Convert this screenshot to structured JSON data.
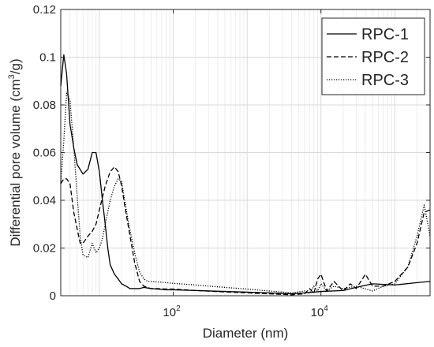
{
  "chart_data": {
    "type": "line",
    "title": "",
    "xlabel": "Diameter (nm)",
    "ylabel_main": "Differential pore volume (cm",
    "ylabel_sup": "3",
    "ylabel_tail": "/g)",
    "x_scale": "log",
    "xlim": [
      3,
      300000
    ],
    "ylim": [
      0,
      0.12
    ],
    "grid": true,
    "legend_position": "top-right",
    "y_ticks": [
      {
        "value": 0,
        "label": "0"
      },
      {
        "value": 0.02,
        "label": "0.02"
      },
      {
        "value": 0.04,
        "label": "0.04"
      },
      {
        "value": 0.06,
        "label": "0.06"
      },
      {
        "value": 0.08,
        "label": "0.08"
      },
      {
        "value": 0.1,
        "label": "0.1"
      },
      {
        "value": 0.12,
        "label": "0.12"
      }
    ],
    "x_ticks": [
      {
        "value": 100,
        "base": "10",
        "exp": "2"
      },
      {
        "value": 10000,
        "base": "10",
        "exp": "4"
      }
    ],
    "series": [
      {
        "name": "RPC-1",
        "dash": "solid",
        "x": [
          3,
          3.3,
          3.6,
          4,
          4.5,
          5,
          6,
          7,
          8,
          9,
          10,
          11,
          12,
          13,
          14,
          16,
          18,
          20,
          23,
          26,
          30,
          35,
          40,
          50,
          60,
          80,
          100,
          200,
          500,
          1000,
          2000,
          4000,
          6000,
          8000,
          10000,
          20000,
          30000,
          50000,
          100000,
          200000,
          300000
        ],
        "y": [
          0.088,
          0.101,
          0.093,
          0.072,
          0.062,
          0.055,
          0.051,
          0.053,
          0.06,
          0.06,
          0.052,
          0.04,
          0.03,
          0.02,
          0.013,
          0.009,
          0.007,
          0.005,
          0.004,
          0.003,
          0.003,
          0.003,
          0.0035,
          0.003,
          0.0028,
          0.0025,
          0.0025,
          0.0022,
          0.0018,
          0.0015,
          0.0012,
          0.0008,
          0.0012,
          0.0015,
          0.0018,
          0.0022,
          0.0035,
          0.005,
          0.0045,
          0.0055,
          0.006
        ]
      },
      {
        "name": "RPC-2",
        "dash": "dashed",
        "x": [
          3,
          3.3,
          3.6,
          4,
          4.5,
          5,
          5.5,
          6,
          7,
          8,
          9,
          10,
          12,
          14,
          16,
          18,
          20,
          22,
          25,
          30,
          35,
          40,
          45,
          50,
          60,
          80,
          100,
          200,
          500,
          1000,
          2000,
          4000,
          6000,
          7000,
          8000,
          9000,
          10000,
          12000,
          15000,
          20000,
          25000,
          30000,
          40000,
          50000,
          70000,
          100000,
          150000,
          200000,
          250000,
          300000
        ],
        "y": [
          0.047,
          0.049,
          0.049,
          0.047,
          0.035,
          0.028,
          0.022,
          0.022,
          0.025,
          0.027,
          0.03,
          0.036,
          0.046,
          0.052,
          0.054,
          0.052,
          0.046,
          0.038,
          0.028,
          0.014,
          0.006,
          0.004,
          0.0035,
          0.003,
          0.003,
          0.0028,
          0.0028,
          0.0022,
          0.0016,
          0.0012,
          0.0008,
          0.0004,
          0.0008,
          0.003,
          0.001,
          0.007,
          0.009,
          0.002,
          0.006,
          0.002,
          0.005,
          0.003,
          0.009,
          0.004,
          0.004,
          0.006,
          0.012,
          0.022,
          0.035,
          0.036
        ]
      },
      {
        "name": "RPC-3",
        "dash": "dotted",
        "x": [
          3,
          3.3,
          3.6,
          4,
          4.5,
          5,
          5.5,
          6,
          7,
          8,
          9,
          10,
          11,
          12,
          14,
          16,
          18,
          20,
          22,
          25,
          30,
          35,
          40,
          45,
          50,
          60,
          80,
          100,
          200,
          500,
          1000,
          2000,
          4000,
          6000,
          7000,
          8000,
          9000,
          10000,
          12000,
          15000,
          20000,
          30000,
          50000,
          70000,
          100000,
          150000,
          200000,
          250000,
          300000
        ],
        "y": [
          0.047,
          0.065,
          0.085,
          0.082,
          0.062,
          0.042,
          0.025,
          0.017,
          0.016,
          0.022,
          0.018,
          0.02,
          0.024,
          0.03,
          0.04,
          0.046,
          0.049,
          0.048,
          0.04,
          0.03,
          0.018,
          0.01,
          0.007,
          0.006,
          0.006,
          0.0058,
          0.0055,
          0.0052,
          0.0045,
          0.0035,
          0.0028,
          0.002,
          0.0012,
          0.002,
          0.001,
          0.004,
          0.002,
          0.005,
          0.002,
          0.004,
          0.003,
          0.004,
          0.002,
          0.004,
          0.005,
          0.012,
          0.025,
          0.038,
          0.025
        ]
      }
    ]
  }
}
